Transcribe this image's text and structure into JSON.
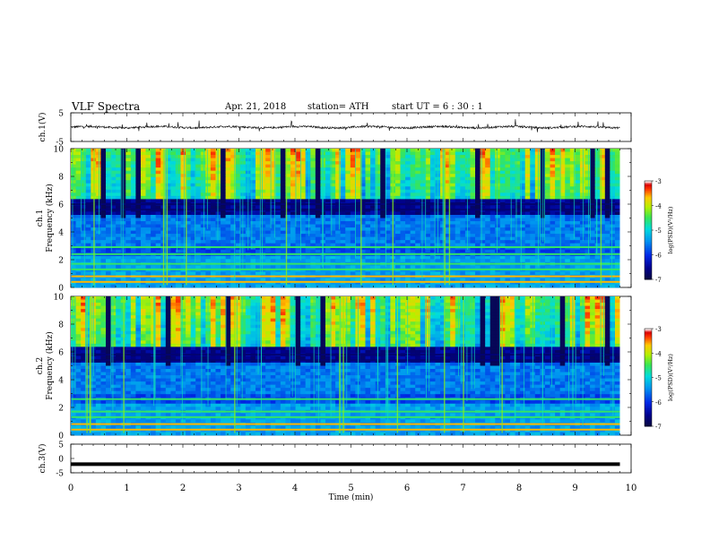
{
  "header": {
    "title": "VLF  Spectra",
    "date": "Apr. 21, 2018",
    "station": "station= ATH",
    "start": "start  UT  =   6  : 30 : 1"
  },
  "chart_data": [
    {
      "type": "line",
      "ylabel": "ch.1(V)",
      "ylim": [
        -5,
        5
      ],
      "yticks": [
        "5",
        "-5"
      ],
      "xlim": [
        0,
        10
      ],
      "series": [
        {
          "values": "noisy waveform around 0 V, amplitude ~0.3 V, with spikes up to ~±2 V"
        }
      ]
    },
    {
      "type": "heatmap",
      "ylabel": "ch.1\nFrequency  (kHz)",
      "ylabel_lines": [
        "ch.1",
        "Frequency  (kHz)"
      ],
      "ylim": [
        0,
        10
      ],
      "yticks": [
        "0",
        "2",
        "4",
        "6",
        "8",
        "10"
      ],
      "xlim": [
        0,
        10
      ],
      "colorbar": {
        "label": "log(PSD)(V²/Hz)",
        "range": [
          -7,
          -3
        ],
        "ticks": [
          "-3",
          "-4",
          "-5",
          "-6",
          "-7"
        ]
      },
      "bands_khz": [
        0.4,
        0.8,
        1.3,
        1.7,
        2.4,
        2.9,
        5.6,
        6.0
      ]
    },
    {
      "type": "heatmap",
      "ylabel": "ch.2\nFrequency  (kHz)",
      "ylabel_lines": [
        "ch.2",
        "Frequency  (kHz)"
      ],
      "ylim": [
        0,
        10
      ],
      "yticks": [
        "0",
        "2",
        "4",
        "6",
        "8",
        "10"
      ],
      "xlim": [
        0,
        10
      ],
      "colorbar": {
        "label": "log(PSD)(V²/Hz)",
        "range": [
          -7,
          -3
        ],
        "ticks": [
          "-3",
          "-4",
          "-5",
          "-6",
          "-7"
        ]
      },
      "bands_khz": [
        0.4,
        0.8,
        1.3,
        1.7,
        2.6,
        5.4,
        5.8
      ]
    },
    {
      "type": "line",
      "ylabel": "ch.3(V)",
      "ylim": [
        -5,
        5
      ],
      "yticks": [
        "5",
        "0",
        "-5"
      ],
      "xlim": [
        0,
        10
      ],
      "series": [
        {
          "values": "constant at approximately -2 V"
        }
      ]
    }
  ],
  "xaxis": {
    "label": "Time  (min)",
    "ticks": [
      "0",
      "1",
      "2",
      "3",
      "4",
      "5",
      "6",
      "7",
      "8",
      "9",
      "10"
    ]
  }
}
